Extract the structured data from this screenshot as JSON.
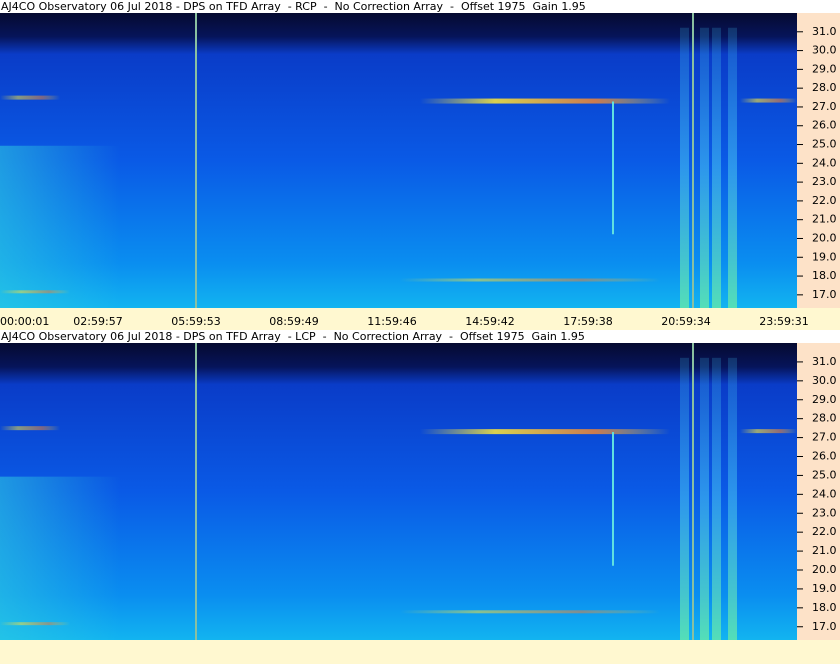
{
  "chart_data": [
    {
      "type": "spectrogram",
      "title": "AJ4CO Observatory 06 Jul 2018 - DPS on TFD Array  - RCP  -  No Correction Array  -  Offset 1975  Gain 1.95",
      "ylim": [
        16.3,
        32.0
      ],
      "yticks": [
        {
          "value": 17,
          "label": "17.0"
        },
        {
          "value": 18,
          "label": "18.0"
        },
        {
          "value": 19,
          "label": "19.0"
        },
        {
          "value": 20,
          "label": "20.0"
        },
        {
          "value": 21,
          "label": "21.0"
        },
        {
          "value": 22,
          "label": "22.0"
        },
        {
          "value": 23,
          "label": "23.0"
        },
        {
          "value": 24,
          "label": "24.0"
        },
        {
          "value": 25,
          "label": "25.0"
        },
        {
          "value": 26,
          "label": "26.0"
        },
        {
          "value": 27,
          "label": "27.0"
        },
        {
          "value": 28,
          "label": "28.0"
        },
        {
          "value": 29,
          "label": "29.0"
        },
        {
          "value": 30,
          "label": "30.0"
        },
        {
          "value": 31,
          "label": "31.0"
        }
      ],
      "xticks": [
        "00:00:01",
        "02:59:57",
        "05:59:53",
        "08:59:49",
        "11:59:46",
        "14:59:42",
        "17:59:38",
        "20:59:34",
        "23:59:31"
      ]
    },
    {
      "type": "spectrogram",
      "title": "AJ4CO Observatory 06 Jul 2018 - DPS on TFD Array  - LCP  -  No Correction Array  -  Offset 1975  Gain 1.95",
      "ylim": [
        16.3,
        32.0
      ],
      "yticks": [
        {
          "value": 17,
          "label": "17.0"
        },
        {
          "value": 18,
          "label": "18.0"
        },
        {
          "value": 19,
          "label": "19.0"
        },
        {
          "value": 20,
          "label": "20.0"
        },
        {
          "value": 21,
          "label": "21.0"
        },
        {
          "value": 22,
          "label": "22.0"
        },
        {
          "value": 23,
          "label": "23.0"
        },
        {
          "value": 24,
          "label": "24.0"
        },
        {
          "value": 25,
          "label": "25.0"
        },
        {
          "value": 26,
          "label": "26.0"
        },
        {
          "value": 27,
          "label": "27.0"
        },
        {
          "value": 28,
          "label": "28.0"
        },
        {
          "value": 29,
          "label": "29.0"
        },
        {
          "value": 30,
          "label": "30.0"
        },
        {
          "value": 31,
          "label": "31.0"
        }
      ]
    }
  ]
}
